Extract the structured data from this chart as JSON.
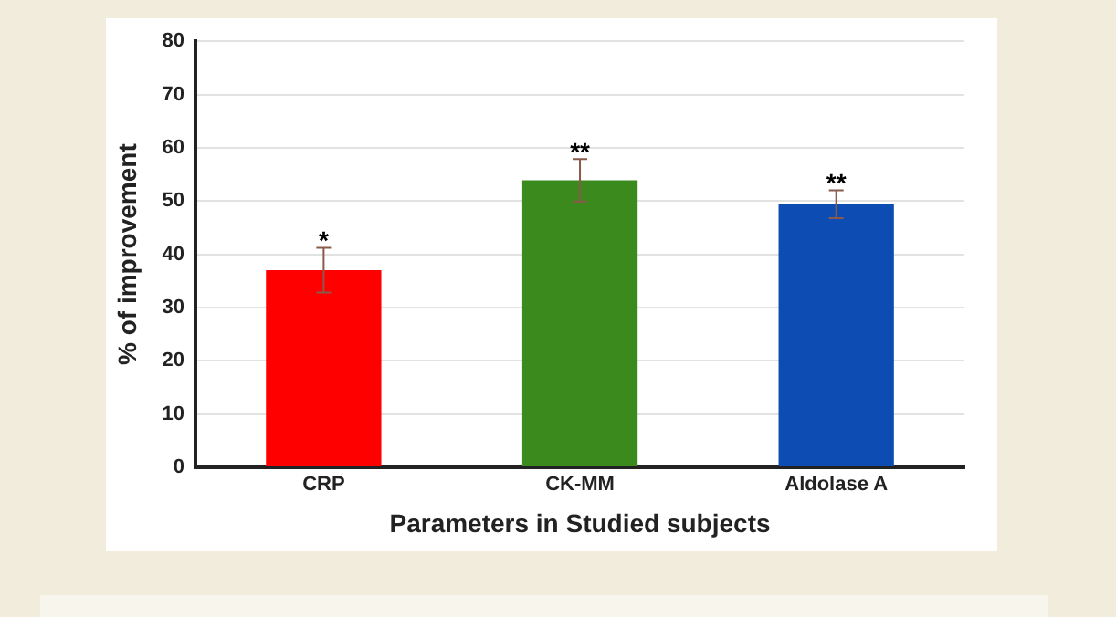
{
  "chart_data": {
    "type": "bar",
    "xlabel": "Parameters in Studied subjects",
    "ylabel": "% of improvement",
    "categories": [
      "CRP",
      "CK-MM",
      "Aldolase A"
    ],
    "values": [
      37,
      53.9,
      49.4
    ],
    "colors": [
      "#ff0000",
      "#3a8a1e",
      "#0d4cb3"
    ],
    "errors": [
      4.2,
      4,
      2.6
    ],
    "ylim": [
      0,
      80
    ],
    "yticks": [
      0,
      10,
      20,
      30,
      40,
      50,
      60,
      70,
      80
    ],
    "grid": "y",
    "annotations": [
      "*",
      "**",
      "**"
    ]
  }
}
